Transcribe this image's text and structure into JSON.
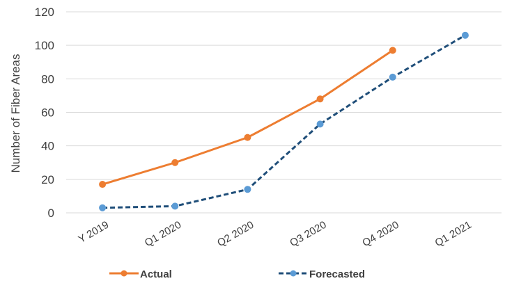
{
  "chart_data": {
    "type": "line",
    "categories": [
      "Y 2019",
      "Q1 2020",
      "Q2 2020",
      "Q3 2020",
      "Q4 2020",
      "Q1 2021"
    ],
    "ylabel": "Number of Fiber Areas",
    "xlabel": "",
    "ylim": [
      0,
      120
    ],
    "yticks": [
      "0",
      "20",
      "40",
      "60",
      "80",
      "100",
      "120"
    ],
    "grid": true,
    "legend_position": "bottom",
    "series": [
      {
        "name": "Actual",
        "values": [
          17,
          30,
          45,
          68,
          97,
          null
        ],
        "color": "#ED7D31",
        "line_style": "solid",
        "marker_color": "#ED7D31"
      },
      {
        "name": "Forecasted",
        "values": [
          3,
          4,
          14,
          53,
          81,
          106
        ],
        "color": "#1F4E79",
        "line_style": "dashed",
        "marker_color": "#5B9BD5"
      }
    ]
  }
}
